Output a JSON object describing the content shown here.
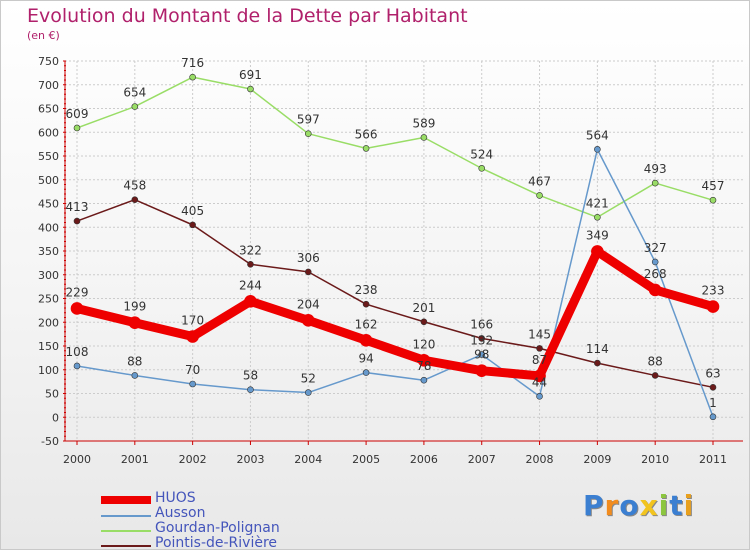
{
  "title": "Evolution du Montant de la Dette par Habitant",
  "subtitle": "(en €)",
  "logo_text": "Proxiti",
  "chart_data": {
    "type": "line",
    "title": "Evolution du Montant de la Dette par Habitant",
    "subtitle": "(en €)",
    "x": [
      "2000",
      "2001",
      "2002",
      "2003",
      "2004",
      "2005",
      "2006",
      "2007",
      "2008",
      "2009",
      "2010",
      "2011"
    ],
    "ylim": [
      -50,
      750
    ],
    "ystep": 50,
    "grid": true,
    "legend_position": "bottom-left",
    "series": [
      {
        "name": "HUOS",
        "color": "#ee0000",
        "width": 9,
        "values": [
          229,
          199,
          170,
          244,
          204,
          162,
          120,
          98,
          87,
          349,
          268,
          233
        ],
        "labels": [
          "229",
          "199",
          "170",
          "244",
          "204",
          "162",
          "120",
          "98",
          "87",
          "349",
          "268",
          "233"
        ]
      },
      {
        "name": "Ausson",
        "color": "#6699cc",
        "width": 1.5,
        "values": [
          108,
          88,
          70,
          58,
          52,
          94,
          78,
          132,
          44,
          564,
          327,
          1
        ],
        "labels": [
          "108",
          "88",
          "70",
          "58",
          "52",
          "94",
          "78",
          "132",
          "44",
          "564",
          "327",
          "1"
        ]
      },
      {
        "name": "Gourdan-Polignan",
        "color": "#99dd66",
        "width": 1.5,
        "values": [
          609,
          654,
          716,
          691,
          597,
          566,
          589,
          524,
          467,
          421,
          493,
          457
        ],
        "labels": [
          "609",
          "654",
          "716",
          "691",
          "597",
          "566",
          "589",
          "524",
          "467",
          "421",
          "493",
          "457"
        ]
      },
      {
        "name": "Pointis-de-Rivière",
        "color": "#6b1a1a",
        "width": 1.5,
        "values": [
          413,
          458,
          405,
          322,
          306,
          238,
          201,
          166,
          145,
          114,
          88,
          63
        ],
        "labels": [
          "413",
          "458",
          "405",
          "322",
          "306",
          "238",
          "201",
          "166",
          "145",
          "114",
          "88",
          "63"
        ]
      }
    ],
    "draw_order": [
      2,
      3,
      1,
      0
    ]
  },
  "colors": {
    "title": "#b0206b",
    "axis": "#cc0000",
    "grid": "#cccccc",
    "legend_text": "#4455bb"
  }
}
